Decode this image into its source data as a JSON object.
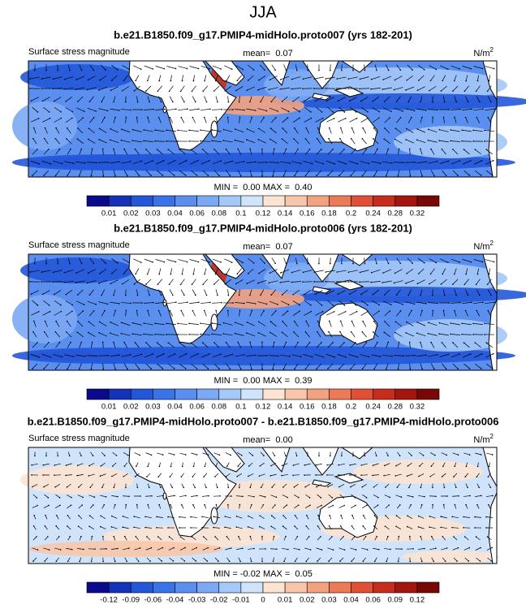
{
  "title": "JJA",
  "panels": [
    {
      "title": "b.e21.B1850.f09_g17.PMIP4-midHolo.proto007 (yrs 182-201)",
      "left_label": "Surface stress magnitude",
      "mean": "mean=  0.07",
      "units": "N/m",
      "units_exp": "2",
      "minmax": "MIN =  0.00 MAX =  0.40",
      "colorbar": {
        "labels": [
          0.01,
          0.02,
          0.03,
          0.04,
          0.06,
          0.08,
          0.1,
          0.12,
          0.14,
          0.16,
          0.18,
          0.2,
          0.24,
          0.28,
          0.32
        ],
        "colors": [
          "#0a0a8c",
          "#1433b8",
          "#2456d8",
          "#3a73e8",
          "#5a8ff0",
          "#7ba9f5",
          "#a4c8f8",
          "#cfe3fb",
          "#fce3d2",
          "#f8c6aa",
          "#f3a27f",
          "#ec7a57",
          "#e14f34",
          "#c72d1d",
          "#a3160f",
          "#780705"
        ]
      }
    },
    {
      "title": "b.e21.B1850.f09_g17.PMIP4-midHolo.proto006 (yrs 182-201)",
      "left_label": "Surface stress magnitude",
      "mean": "mean=  0.07",
      "units": "N/m",
      "units_exp": "2",
      "minmax": "MIN =  0.00 MAX =  0.39",
      "colorbar": {
        "labels": [
          0.01,
          0.02,
          0.03,
          0.04,
          0.06,
          0.08,
          0.1,
          0.12,
          0.14,
          0.16,
          0.18,
          0.2,
          0.24,
          0.28,
          0.32
        ],
        "colors": [
          "#0a0a8c",
          "#1433b8",
          "#2456d8",
          "#3a73e8",
          "#5a8ff0",
          "#7ba9f5",
          "#a4c8f8",
          "#cfe3fb",
          "#fce3d2",
          "#f8c6aa",
          "#f3a27f",
          "#ec7a57",
          "#e14f34",
          "#c72d1d",
          "#a3160f",
          "#780705"
        ]
      }
    },
    {
      "title": "b.e21.B1850.f09_g17.PMIP4-midHolo.proto007 - b.e21.B1850.f09_g17.PMIP4-midHolo.proto006",
      "left_label": "Surface stress magnitude",
      "mean": "mean=  0.00",
      "units": "N/m",
      "units_exp": "2",
      "minmax": "MIN = -0.02 MAX =  0.05",
      "colorbar": {
        "labels": [
          -0.12,
          -0.09,
          -0.06,
          -0.04,
          -0.03,
          -0.02,
          -0.01,
          0,
          0.01,
          0.02,
          0.03,
          0.04,
          0.06,
          0.09,
          0.12
        ],
        "colors": [
          "#0a0a8c",
          "#1433b8",
          "#2456d8",
          "#3a73e8",
          "#5a8ff0",
          "#7ba9f5",
          "#a4c8f8",
          "#cfe3fb",
          "#fce3d2",
          "#f8c6aa",
          "#f3a27f",
          "#ec7a57",
          "#e14f34",
          "#c72d1d",
          "#a3160f",
          "#780705"
        ]
      }
    }
  ]
}
